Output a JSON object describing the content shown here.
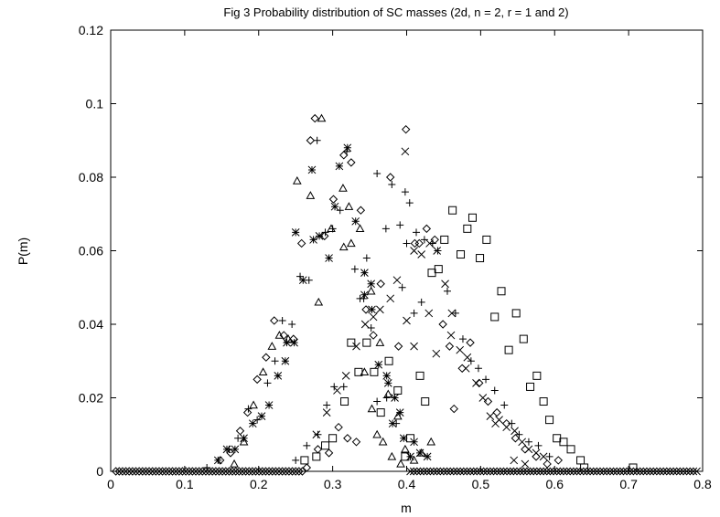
{
  "chart_data": {
    "type": "scatter",
    "title": "Fig 3 Probability distribution of SC masses (2d, n = 2, r = 1 and 2)",
    "xlabel": "m",
    "ylabel": "P(m)",
    "xlim": [
      0,
      0.8
    ],
    "ylim": [
      0,
      0.12
    ],
    "xticks": [
      "0",
      "0.1",
      "0.2",
      "0.3",
      "0.4",
      "0.5",
      "0.6",
      "0.7",
      "0.8"
    ],
    "yticks": [
      "0",
      "0.02",
      "0.04",
      "0.06",
      "0.08",
      "0.1",
      "0.12"
    ],
    "grid": false,
    "legend": "none",
    "color": "#000000",
    "series": [
      {
        "marker": "diamond",
        "points": [
          [
            0.148,
            0.003
          ],
          [
            0.162,
            0.005
          ],
          [
            0.175,
            0.011
          ],
          [
            0.185,
            0.016
          ],
          [
            0.198,
            0.025
          ],
          [
            0.21,
            0.031
          ],
          [
            0.221,
            0.041
          ],
          [
            0.234,
            0.037
          ],
          [
            0.247,
            0.036
          ],
          [
            0.258,
            0.062
          ],
          [
            0.27,
            0.09
          ],
          [
            0.276,
            0.096
          ],
          [
            0.289,
            0.064
          ],
          [
            0.301,
            0.074
          ],
          [
            0.315,
            0.086
          ],
          [
            0.325,
            0.084
          ],
          [
            0.338,
            0.071
          ],
          [
            0.345,
            0.044
          ],
          [
            0.355,
            0.037
          ],
          [
            0.365,
            0.051
          ],
          [
            0.378,
            0.08
          ],
          [
            0.389,
            0.034
          ],
          [
            0.399,
            0.093
          ],
          [
            0.411,
            0.062
          ],
          [
            0.417,
            0.062
          ],
          [
            0.427,
            0.066
          ],
          [
            0.438,
            0.063
          ],
          [
            0.449,
            0.04
          ],
          [
            0.458,
            0.034
          ],
          [
            0.464,
            0.017
          ],
          [
            0.475,
            0.028
          ],
          [
            0.486,
            0.035
          ],
          [
            0.498,
            0.024
          ],
          [
            0.51,
            0.019
          ],
          [
            0.522,
            0.016
          ],
          [
            0.535,
            0.013
          ],
          [
            0.547,
            0.009
          ],
          [
            0.56,
            0.006
          ],
          [
            0.575,
            0.004
          ],
          [
            0.59,
            0.002
          ],
          [
            0.605,
            0.003
          ],
          [
            0.265,
            0.001
          ],
          [
            0.28,
            0.006
          ],
          [
            0.295,
            0.005
          ],
          [
            0.308,
            0.012
          ],
          [
            0.32,
            0.009
          ],
          [
            0.332,
            0.008
          ]
        ]
      },
      {
        "marker": "triangle",
        "points": [
          [
            0.167,
            0.002
          ],
          [
            0.18,
            0.008
          ],
          [
            0.193,
            0.018
          ],
          [
            0.206,
            0.027
          ],
          [
            0.218,
            0.034
          ],
          [
            0.228,
            0.037
          ],
          [
            0.24,
            0.036
          ],
          [
            0.252,
            0.079
          ],
          [
            0.27,
            0.075
          ],
          [
            0.285,
            0.096
          ],
          [
            0.298,
            0.066
          ],
          [
            0.314,
            0.077
          ],
          [
            0.322,
            0.072
          ],
          [
            0.337,
            0.066
          ],
          [
            0.352,
            0.049
          ],
          [
            0.364,
            0.035
          ],
          [
            0.375,
            0.021
          ],
          [
            0.388,
            0.015
          ],
          [
            0.398,
            0.006
          ],
          [
            0.41,
            0.003
          ],
          [
            0.42,
            0.005
          ],
          [
            0.433,
            0.008
          ],
          [
            0.281,
            0.046
          ],
          [
            0.315,
            0.061
          ],
          [
            0.325,
            0.062
          ],
          [
            0.343,
            0.027
          ],
          [
            0.353,
            0.017
          ],
          [
            0.36,
            0.01
          ],
          [
            0.368,
            0.008
          ],
          [
            0.38,
            0.004
          ],
          [
            0.392,
            0.002
          ]
        ]
      },
      {
        "marker": "plus",
        "points": [
          [
            0.13,
            0.001
          ],
          [
            0.16,
            0.006
          ],
          [
            0.172,
            0.009
          ],
          [
            0.186,
            0.017
          ],
          [
            0.198,
            0.014
          ],
          [
            0.212,
            0.024
          ],
          [
            0.222,
            0.03
          ],
          [
            0.232,
            0.041
          ],
          [
            0.245,
            0.04
          ],
          [
            0.256,
            0.053
          ],
          [
            0.268,
            0.052
          ],
          [
            0.279,
            0.09
          ],
          [
            0.29,
            0.065
          ],
          [
            0.3,
            0.066
          ],
          [
            0.31,
            0.071
          ],
          [
            0.319,
            0.087
          ],
          [
            0.33,
            0.055
          ],
          [
            0.342,
            0.047
          ],
          [
            0.352,
            0.039
          ],
          [
            0.36,
            0.081
          ],
          [
            0.372,
            0.066
          ],
          [
            0.38,
            0.078
          ],
          [
            0.391,
            0.067
          ],
          [
            0.398,
            0.076
          ],
          [
            0.404,
            0.073
          ],
          [
            0.413,
            0.065
          ],
          [
            0.424,
            0.063
          ],
          [
            0.435,
            0.062
          ],
          [
            0.442,
            0.06
          ],
          [
            0.455,
            0.049
          ],
          [
            0.466,
            0.043
          ],
          [
            0.476,
            0.036
          ],
          [
            0.487,
            0.03
          ],
          [
            0.497,
            0.028
          ],
          [
            0.507,
            0.025
          ],
          [
            0.519,
            0.022
          ],
          [
            0.532,
            0.018
          ],
          [
            0.542,
            0.013
          ],
          [
            0.552,
            0.01
          ],
          [
            0.565,
            0.008
          ],
          [
            0.578,
            0.007
          ],
          [
            0.593,
            0.004
          ],
          [
            0.25,
            0.003
          ],
          [
            0.265,
            0.007
          ],
          [
            0.28,
            0.01
          ],
          [
            0.292,
            0.018
          ],
          [
            0.302,
            0.023
          ],
          [
            0.315,
            0.023
          ],
          [
            0.337,
            0.047
          ],
          [
            0.346,
            0.058
          ],
          [
            0.36,
            0.019
          ],
          [
            0.373,
            0.02
          ],
          [
            0.386,
            0.013
          ],
          [
            0.394,
            0.05
          ],
          [
            0.4,
            0.062
          ],
          [
            0.41,
            0.043
          ],
          [
            0.42,
            0.046
          ]
        ]
      },
      {
        "marker": "star",
        "points": [
          [
            0.145,
            0.003
          ],
          [
            0.157,
            0.006
          ],
          [
            0.168,
            0.006
          ],
          [
            0.18,
            0.009
          ],
          [
            0.192,
            0.013
          ],
          [
            0.204,
            0.015
          ],
          [
            0.214,
            0.018
          ],
          [
            0.226,
            0.026
          ],
          [
            0.236,
            0.03
          ],
          [
            0.248,
            0.035
          ],
          [
            0.26,
            0.052
          ],
          [
            0.272,
            0.082
          ],
          [
            0.282,
            0.064
          ],
          [
            0.295,
            0.058
          ],
          [
            0.309,
            0.083
          ],
          [
            0.32,
            0.088
          ],
          [
            0.331,
            0.068
          ],
          [
            0.343,
            0.054
          ],
          [
            0.352,
            0.051
          ],
          [
            0.362,
            0.029
          ],
          [
            0.373,
            0.026
          ],
          [
            0.384,
            0.02
          ],
          [
            0.391,
            0.016
          ],
          [
            0.396,
            0.009
          ],
          [
            0.405,
            0.004
          ],
          [
            0.41,
            0.008
          ],
          [
            0.418,
            0.005
          ],
          [
            0.428,
            0.004
          ],
          [
            0.238,
            0.035
          ],
          [
            0.25,
            0.065
          ],
          [
            0.274,
            0.063
          ],
          [
            0.303,
            0.072
          ],
          [
            0.343,
            0.048
          ],
          [
            0.353,
            0.044
          ],
          [
            0.375,
            0.024
          ],
          [
            0.381,
            0.013
          ]
        ]
      },
      {
        "marker": "square",
        "points": [
          [
            0.262,
            0.003
          ],
          [
            0.278,
            0.004
          ],
          [
            0.29,
            0.007
          ],
          [
            0.3,
            0.009
          ],
          [
            0.316,
            0.019
          ],
          [
            0.325,
            0.035
          ],
          [
            0.335,
            0.027
          ],
          [
            0.346,
            0.035
          ],
          [
            0.356,
            0.027
          ],
          [
            0.365,
            0.016
          ],
          [
            0.376,
            0.03
          ],
          [
            0.388,
            0.022
          ],
          [
            0.398,
            0.004
          ],
          [
            0.405,
            0.009
          ],
          [
            0.418,
            0.026
          ],
          [
            0.425,
            0.019
          ],
          [
            0.434,
            0.054
          ],
          [
            0.443,
            0.055
          ],
          [
            0.451,
            0.063
          ],
          [
            0.462,
            0.071
          ],
          [
            0.473,
            0.059
          ],
          [
            0.482,
            0.066
          ],
          [
            0.489,
            0.069
          ],
          [
            0.499,
            0.058
          ],
          [
            0.508,
            0.063
          ],
          [
            0.519,
            0.042
          ],
          [
            0.528,
            0.049
          ],
          [
            0.538,
            0.033
          ],
          [
            0.548,
            0.043
          ],
          [
            0.558,
            0.036
          ],
          [
            0.567,
            0.023
          ],
          [
            0.576,
            0.026
          ],
          [
            0.585,
            0.019
          ],
          [
            0.593,
            0.014
          ],
          [
            0.603,
            0.009
          ],
          [
            0.612,
            0.008
          ],
          [
            0.622,
            0.006
          ],
          [
            0.635,
            0.003
          ],
          [
            0.706,
            0.001
          ],
          [
            0.64,
            0.001
          ]
        ]
      },
      {
        "marker": "cross",
        "points": [
          [
            0.278,
            0.01
          ],
          [
            0.292,
            0.016
          ],
          [
            0.306,
            0.022
          ],
          [
            0.318,
            0.026
          ],
          [
            0.332,
            0.034
          ],
          [
            0.344,
            0.04
          ],
          [
            0.355,
            0.042
          ],
          [
            0.364,
            0.044
          ],
          [
            0.378,
            0.047
          ],
          [
            0.387,
            0.052
          ],
          [
            0.398,
            0.087
          ],
          [
            0.41,
            0.06
          ],
          [
            0.42,
            0.059
          ],
          [
            0.431,
            0.062
          ],
          [
            0.441,
            0.06
          ],
          [
            0.452,
            0.051
          ],
          [
            0.461,
            0.043
          ],
          [
            0.472,
            0.033
          ],
          [
            0.482,
            0.031
          ],
          [
            0.494,
            0.024
          ],
          [
            0.503,
            0.02
          ],
          [
            0.513,
            0.015
          ],
          [
            0.525,
            0.014
          ],
          [
            0.535,
            0.012
          ],
          [
            0.546,
            0.011
          ],
          [
            0.556,
            0.008
          ],
          [
            0.565,
            0.006
          ],
          [
            0.575,
            0.005
          ],
          [
            0.585,
            0.004
          ],
          [
            0.48,
            0.028
          ],
          [
            0.56,
            0.002
          ],
          [
            0.4,
            0.041
          ],
          [
            0.41,
            0.034
          ],
          [
            0.43,
            0.043
          ],
          [
            0.44,
            0.032
          ],
          [
            0.46,
            0.037
          ],
          [
            0.52,
            0.013
          ],
          [
            0.545,
            0.003
          ]
        ]
      },
      {
        "marker": "diamond-baseline",
        "x_from": 0.007,
        "x_to": 0.26,
        "x_step": 0.0045,
        "y": 0
      },
      {
        "marker": "cross-baseline",
        "x_from": 0.405,
        "x_to": 0.795,
        "x_step": 0.0045,
        "y": 0
      }
    ]
  }
}
